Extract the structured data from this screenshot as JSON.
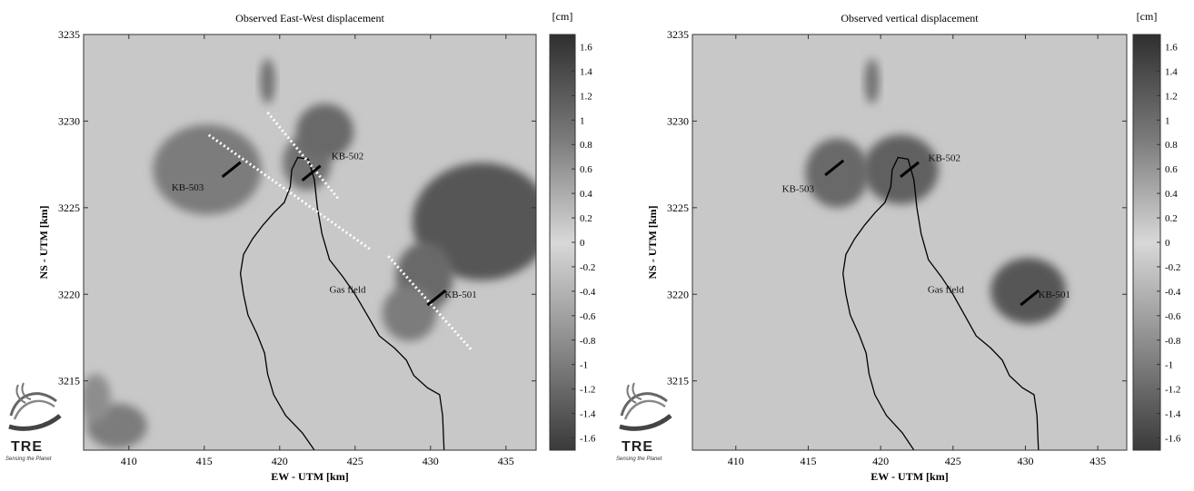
{
  "figure": {
    "panels": [
      {
        "title": "Observed East-West displacement",
        "unit": "[cm]",
        "xlabel": "EW - UTM [km]",
        "ylabel": "NS - UTM [km]",
        "field_label": "Gas field",
        "wells": [
          {
            "name": "KB-503",
            "x": 416.8,
            "y": 3227.2,
            "label_x": 413.9,
            "label_y": 3226.0
          },
          {
            "name": "KB-502",
            "x": 422.1,
            "y": 3227.0,
            "label_x": 424.5,
            "label_y": 3227.8
          },
          {
            "name": "KB-501",
            "x": 430.4,
            "y": 3219.8,
            "label_x": 432.0,
            "label_y": 3219.8
          }
        ],
        "fault_lines": [
          {
            "x1": 415.3,
            "y1": 3229.2,
            "x2": 426.0,
            "y2": 3222.6
          },
          {
            "x1": 419.2,
            "y1": 3230.5,
            "x2": 423.9,
            "y2": 3225.5
          },
          {
            "x1": 427.2,
            "y1": 3222.2,
            "x2": 432.7,
            "y2": 3216.8
          }
        ]
      },
      {
        "title": "Observed vertical displacement",
        "unit": "[cm]",
        "xlabel": "EW - UTM [km]",
        "ylabel": "NS - UTM [km]",
        "field_label": "Gas field",
        "wells": [
          {
            "name": "KB-503",
            "x": 416.8,
            "y": 3227.3,
            "label_x": 414.3,
            "label_y": 3225.9
          },
          {
            "name": "KB-502",
            "x": 422.0,
            "y": 3227.2,
            "label_x": 424.4,
            "label_y": 3227.7
          },
          {
            "name": "KB-501",
            "x": 430.3,
            "y": 3219.8,
            "label_x": 432.0,
            "label_y": 3219.8
          }
        ],
        "fault_lines": []
      }
    ],
    "logo": {
      "text": "TRE",
      "tagline": "Sensing the Planet"
    }
  },
  "chart_data": [
    {
      "type": "heatmap",
      "title": "Observed East-West displacement",
      "xlabel": "EW - UTM [km]",
      "ylabel": "NS - UTM [km]",
      "xlim": [
        407,
        437
      ],
      "ylim": [
        3211,
        3235
      ],
      "xticks": [
        410,
        415,
        420,
        425,
        430,
        435
      ],
      "yticks": [
        3215,
        3220,
        3225,
        3230,
        3235
      ],
      "colorbar": {
        "label": "[cm]",
        "range": [
          -1.7,
          1.7
        ],
        "ticks": [
          1.6,
          1.4,
          1.2,
          1,
          0.8,
          0.6,
          0.4,
          0.2,
          0,
          -0.2,
          -0.4,
          -0.6,
          -0.8,
          -1,
          -1.2,
          -1.4,
          -1.6
        ]
      },
      "features": [
        {
          "kind": "high",
          "cx": 415.2,
          "cy": 3227.2,
          "rx": 3.6,
          "ry": 2.6,
          "value": 0.9
        },
        {
          "kind": "high",
          "cx": 421.8,
          "cy": 3227.6,
          "rx": 1.6,
          "ry": 1.6,
          "value": 1.0
        },
        {
          "kind": "high",
          "cx": 423.0,
          "cy": 3229.4,
          "rx": 1.9,
          "ry": 1.6,
          "value": 1.1
        },
        {
          "kind": "high",
          "cx": 419.2,
          "cy": 3232.3,
          "rx": 0.5,
          "ry": 1.3,
          "value": 1.0
        },
        {
          "kind": "high",
          "cx": 433.4,
          "cy": 3224.2,
          "rx": 4.6,
          "ry": 3.4,
          "value": 1.3
        },
        {
          "kind": "high",
          "cx": 429.6,
          "cy": 3221.0,
          "rx": 1.9,
          "ry": 2.0,
          "value": 1.1
        },
        {
          "kind": "high",
          "cx": 428.6,
          "cy": 3218.9,
          "rx": 1.8,
          "ry": 1.6,
          "value": 0.9
        },
        {
          "kind": "high",
          "cx": 409.2,
          "cy": 3212.4,
          "rx": 2.0,
          "ry": 1.3,
          "value": 0.9
        },
        {
          "kind": "high",
          "cx": 407.8,
          "cy": 3214.0,
          "rx": 1.0,
          "ry": 1.4,
          "value": 0.7
        }
      ]
    },
    {
      "type": "heatmap",
      "title": "Observed vertical displacement",
      "xlabel": "EW - UTM [km]",
      "ylabel": "NS - UTM [km]",
      "xlim": [
        407,
        437
      ],
      "ylim": [
        3211,
        3235
      ],
      "xticks": [
        410,
        415,
        420,
        425,
        430,
        435
      ],
      "yticks": [
        3215,
        3220,
        3225,
        3230,
        3235
      ],
      "colorbar": {
        "label": "[cm]",
        "range": [
          -1.7,
          1.7
        ],
        "ticks": [
          1.6,
          1.4,
          1.2,
          1,
          0.8,
          0.6,
          0.4,
          0.2,
          0,
          -0.2,
          -0.4,
          -0.6,
          -0.8,
          -1,
          -1.2,
          -1.4,
          -1.6
        ]
      },
      "features": [
        {
          "kind": "high",
          "cx": 417.0,
          "cy": 3227.0,
          "rx": 2.2,
          "ry": 2.0,
          "value": 1.1
        },
        {
          "kind": "high",
          "cx": 421.4,
          "cy": 3227.2,
          "rx": 2.6,
          "ry": 2.0,
          "value": 1.2
        },
        {
          "kind": "high",
          "cx": 430.2,
          "cy": 3220.2,
          "rx": 2.6,
          "ry": 1.9,
          "value": 1.3
        },
        {
          "kind": "high",
          "cx": 419.4,
          "cy": 3232.3,
          "rx": 0.5,
          "ry": 1.3,
          "value": 1.0
        }
      ]
    }
  ]
}
